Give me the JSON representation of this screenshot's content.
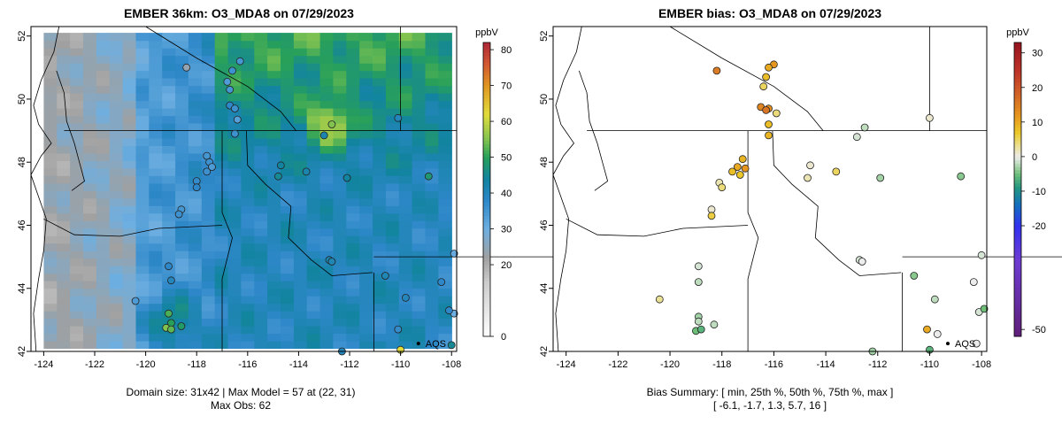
{
  "chart_data": [
    {
      "type": "heatmap",
      "title": "EMBER 36km: O3_MDA8 on 07/29/2023",
      "colorbar_unit": "ppbV",
      "colorbar_ticks": [
        0,
        20,
        30,
        40,
        50,
        60,
        70,
        80
      ],
      "colorbar_range": [
        0,
        82
      ],
      "xlim": [
        -124.5,
        -107.8
      ],
      "ylim": [
        42,
        52.3
      ],
      "x_ticks": [
        -124,
        -122,
        -120,
        -118,
        -116,
        -114,
        -112,
        -110,
        -108
      ],
      "y_ticks": [
        42,
        44,
        46,
        48,
        50,
        52
      ],
      "model_extent": {
        "lon": [
          -124.0,
          -108.0
        ],
        "lat": [
          42.1,
          52.1
        ]
      },
      "site_label": "AQS",
      "site_marker": {
        "lon": -109.3,
        "lat": 42.25
      },
      "caption_lines": [
        "Domain size: 31x42 | Max Model = 57 at (22, 31)",
        "Max Obs: 62"
      ],
      "observations": [
        {
          "lon": -118.4,
          "lat": 51.0,
          "value": 24
        },
        {
          "lon": -116.3,
          "lat": 51.2,
          "value": 35
        },
        {
          "lon": -116.6,
          "lat": 50.9,
          "value": 36
        },
        {
          "lon": -116.8,
          "lat": 50.55,
          "value": 34
        },
        {
          "lon": -116.7,
          "lat": 50.3,
          "value": 35
        },
        {
          "lon": -116.7,
          "lat": 49.8,
          "value": 38
        },
        {
          "lon": -116.5,
          "lat": 49.7,
          "value": 36
        },
        {
          "lon": -116.4,
          "lat": 49.35,
          "value": 33
        },
        {
          "lon": -116.5,
          "lat": 48.9,
          "value": 36
        },
        {
          "lon": -112.7,
          "lat": 49.2,
          "value": 55
        },
        {
          "lon": -113.0,
          "lat": 48.85,
          "value": 42
        },
        {
          "lon": -110.1,
          "lat": 49.4,
          "value": 40
        },
        {
          "lon": -117.6,
          "lat": 48.2,
          "value": 35
        },
        {
          "lon": -117.5,
          "lat": 48.0,
          "value": 36
        },
        {
          "lon": -117.4,
          "lat": 47.85,
          "value": 34
        },
        {
          "lon": -117.6,
          "lat": 47.7,
          "value": 36
        },
        {
          "lon": -118.0,
          "lat": 47.4,
          "value": 37
        },
        {
          "lon": -118.0,
          "lat": 47.2,
          "value": 38
        },
        {
          "lon": -114.7,
          "lat": 47.9,
          "value": 44
        },
        {
          "lon": -114.8,
          "lat": 47.55,
          "value": 45
        },
        {
          "lon": -113.7,
          "lat": 47.7,
          "value": 42
        },
        {
          "lon": -112.1,
          "lat": 47.5,
          "value": 44
        },
        {
          "lon": -108.9,
          "lat": 47.55,
          "value": 48
        },
        {
          "lon": -118.6,
          "lat": 46.5,
          "value": 35
        },
        {
          "lon": -118.7,
          "lat": 46.35,
          "value": 36
        },
        {
          "lon": -112.8,
          "lat": 44.9,
          "value": 42
        },
        {
          "lon": -112.7,
          "lat": 44.85,
          "value": 41
        },
        {
          "lon": -110.6,
          "lat": 44.4,
          "value": 41
        },
        {
          "lon": -109.8,
          "lat": 43.7,
          "value": 40
        },
        {
          "lon": -108.4,
          "lat": 44.2,
          "value": 38
        },
        {
          "lon": -107.9,
          "lat": 45.1,
          "value": 31
        },
        {
          "lon": -119.1,
          "lat": 44.7,
          "value": 38
        },
        {
          "lon": -119.0,
          "lat": 44.25,
          "value": 40
        },
        {
          "lon": -120.4,
          "lat": 43.6,
          "value": 34
        },
        {
          "lon": -119.1,
          "lat": 43.2,
          "value": 52
        },
        {
          "lon": -119.0,
          "lat": 42.9,
          "value": 50
        },
        {
          "lon": -119.2,
          "lat": 42.75,
          "value": 55
        },
        {
          "lon": -119.0,
          "lat": 42.7,
          "value": 53
        },
        {
          "lon": -118.6,
          "lat": 42.8,
          "value": 49
        },
        {
          "lon": -110.1,
          "lat": 42.7,
          "value": 37
        },
        {
          "lon": -107.9,
          "lat": 43.2,
          "value": 30
        },
        {
          "lon": -108.1,
          "lat": 43.3,
          "value": 38
        },
        {
          "lon": -110.0,
          "lat": 42.05,
          "value": 62
        },
        {
          "lon": -112.3,
          "lat": 42.0,
          "value": 40
        },
        {
          "lon": -108.0,
          "lat": 42.2,
          "value": 45
        }
      ]
    },
    {
      "type": "scatter",
      "title": "EMBER bias: O3_MDA8 on 07/29/2023",
      "colorbar_unit": "ppbV",
      "colorbar_ticks": [
        -50,
        -20,
        -10,
        0,
        10,
        20,
        30
      ],
      "colorbar_range": [
        -52,
        33
      ],
      "xlim": [
        -124.5,
        -107.8
      ],
      "ylim": [
        42,
        52.3
      ],
      "x_ticks": [
        -124,
        -122,
        -120,
        -118,
        -116,
        -114,
        -112,
        -110,
        -108
      ],
      "y_ticks": [
        42,
        44,
        46,
        48,
        50,
        52
      ],
      "site_label": "AQS",
      "site_marker": {
        "lon": -109.3,
        "lat": 42.25
      },
      "caption_lines": [
        "Bias Summary: [ min, 25th %, 50th %, 75th %, max ]",
        "[ -6.1,   -1.7,   1.3,   5.7,   16 ]"
      ],
      "observations": [
        {
          "lon": -118.2,
          "lat": 50.9,
          "value": 15
        },
        {
          "lon": -116.0,
          "lat": 51.1,
          "value": 12
        },
        {
          "lon": -116.2,
          "lat": 51.0,
          "value": 10
        },
        {
          "lon": -116.3,
          "lat": 50.7,
          "value": 8
        },
        {
          "lon": -116.4,
          "lat": 50.4,
          "value": 5
        },
        {
          "lon": -116.5,
          "lat": 49.75,
          "value": 14
        },
        {
          "lon": -116.2,
          "lat": 49.7,
          "value": 13
        },
        {
          "lon": -116.3,
          "lat": 49.65,
          "value": 16
        },
        {
          "lon": -115.9,
          "lat": 49.55,
          "value": 4
        },
        {
          "lon": -116.2,
          "lat": 49.2,
          "value": 8
        },
        {
          "lon": -116.2,
          "lat": 48.85,
          "value": 9
        },
        {
          "lon": -112.5,
          "lat": 49.1,
          "value": -2
        },
        {
          "lon": -112.8,
          "lat": 48.8,
          "value": -1
        },
        {
          "lon": -110.0,
          "lat": 49.4,
          "value": 1
        },
        {
          "lon": -117.2,
          "lat": 48.1,
          "value": 9
        },
        {
          "lon": -117.4,
          "lat": 47.85,
          "value": 10
        },
        {
          "lon": -117.1,
          "lat": 47.8,
          "value": 12
        },
        {
          "lon": -117.6,
          "lat": 47.7,
          "value": 8
        },
        {
          "lon": -117.3,
          "lat": 47.6,
          "value": 7
        },
        {
          "lon": -118.1,
          "lat": 47.35,
          "value": 2
        },
        {
          "lon": -118.0,
          "lat": 47.2,
          "value": 4
        },
        {
          "lon": -114.6,
          "lat": 47.9,
          "value": 1
        },
        {
          "lon": -114.7,
          "lat": 47.5,
          "value": 2
        },
        {
          "lon": -113.6,
          "lat": 47.7,
          "value": 5
        },
        {
          "lon": -111.9,
          "lat": 47.5,
          "value": -3
        },
        {
          "lon": -108.8,
          "lat": 47.55,
          "value": -4
        },
        {
          "lon": -118.4,
          "lat": 46.5,
          "value": 1
        },
        {
          "lon": -118.4,
          "lat": 46.3,
          "value": 6
        },
        {
          "lon": -112.7,
          "lat": 44.9,
          "value": -1
        },
        {
          "lon": -112.6,
          "lat": 44.85,
          "value": 0
        },
        {
          "lon": -110.6,
          "lat": 44.4,
          "value": -4
        },
        {
          "lon": -109.8,
          "lat": 43.65,
          "value": -2
        },
        {
          "lon": -108.3,
          "lat": 44.2,
          "value": 0
        },
        {
          "lon": -108.0,
          "lat": 45.05,
          "value": -1
        },
        {
          "lon": -118.9,
          "lat": 44.7,
          "value": -1
        },
        {
          "lon": -118.9,
          "lat": 44.2,
          "value": -2
        },
        {
          "lon": -120.4,
          "lat": 43.65,
          "value": 3
        },
        {
          "lon": -118.9,
          "lat": 43.1,
          "value": -3
        },
        {
          "lon": -118.9,
          "lat": 42.95,
          "value": -2
        },
        {
          "lon": -119.0,
          "lat": 42.65,
          "value": -5
        },
        {
          "lon": -118.8,
          "lat": 42.7,
          "value": -6
        },
        {
          "lon": -118.3,
          "lat": 42.85,
          "value": -2
        },
        {
          "lon": -110.1,
          "lat": 42.7,
          "value": 10
        },
        {
          "lon": -109.7,
          "lat": 42.55,
          "value": 0
        },
        {
          "lon": -108.1,
          "lat": 43.25,
          "value": -1
        },
        {
          "lon": -107.9,
          "lat": 43.35,
          "value": -5
        },
        {
          "lon": -110.0,
          "lat": 42.05,
          "value": -6
        },
        {
          "lon": -112.2,
          "lat": 42.0,
          "value": -3
        },
        {
          "lon": -108.2,
          "lat": 42.25,
          "value": 0
        }
      ]
    }
  ]
}
